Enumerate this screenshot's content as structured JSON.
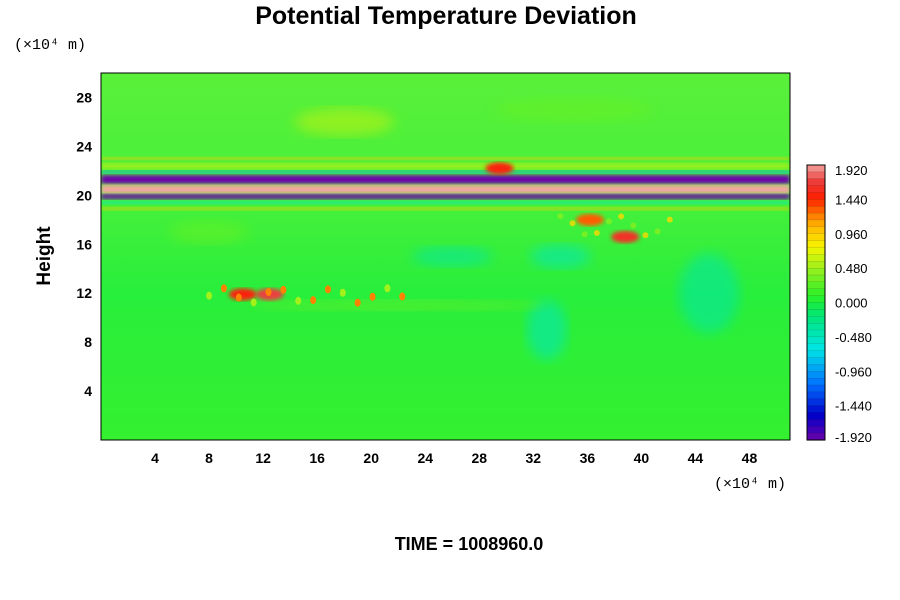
{
  "chart_data": {
    "type": "heatmap",
    "title": "Potential Temperature Deviation",
    "ylabel": "Height",
    "y_unit": "(×10⁴ m)",
    "x_unit": "(×10⁴ m)",
    "xlim": [
      0,
      51
    ],
    "ylim": [
      0,
      30
    ],
    "x_ticks": [
      "4",
      "8",
      "12",
      "16",
      "20",
      "24",
      "28",
      "32",
      "36",
      "40",
      "44",
      "48"
    ],
    "y_ticks": [
      "4",
      "8",
      "12",
      "16",
      "20",
      "24",
      "28"
    ],
    "colorbar": {
      "range": [
        -1.92,
        1.92
      ],
      "labels": [
        "1.920",
        "1.440",
        "0.960",
        "0.480",
        "0.000",
        "-0.480",
        "-0.960",
        "-1.440",
        "-1.920"
      ]
    },
    "field_features": {
      "background_value": 0.05,
      "bands": [
        {
          "x_range": [
            0,
            51
          ],
          "y": 21.3,
          "value": -1.92
        },
        {
          "x_range": [
            0,
            51
          ],
          "y": 20.5,
          "value": 1.92
        },
        {
          "x_range": [
            0,
            51
          ],
          "y": 19.9,
          "value": -1.92
        },
        {
          "x_range": [
            0,
            51
          ],
          "y": 22.4,
          "value": 0.48
        }
      ],
      "hotspots": [
        {
          "x": 10.5,
          "y": 11.9,
          "value": 1.5
        },
        {
          "x": 12.5,
          "y": 11.9,
          "value": 1.7
        },
        {
          "x": 36.2,
          "y": 18.0,
          "value": 1.3
        },
        {
          "x": 38.8,
          "y": 16.6,
          "value": 1.6
        },
        {
          "x": 29.5,
          "y": 22.2,
          "value": 1.5
        }
      ]
    },
    "time_label": "TIME = 1008960.0"
  },
  "colors": {
    "background_field": "#34f02f",
    "band_negative": "#7a00b8",
    "band_positive": "#f7b0a8"
  }
}
